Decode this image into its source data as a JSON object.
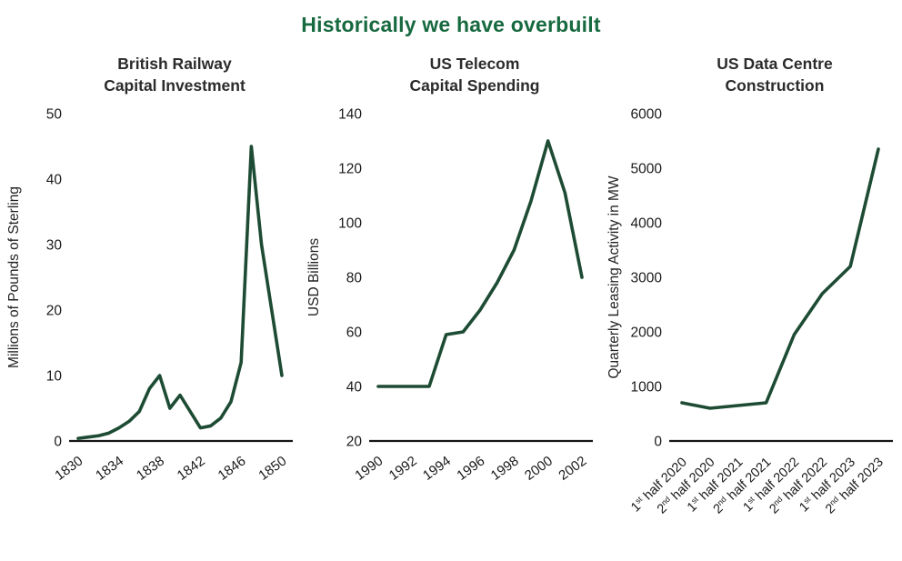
{
  "page_title": "Historically we have overbuilt",
  "colors": {
    "heading": "#17693f",
    "line": "#1d4b33",
    "axis": "#161616",
    "tick_text": "#1a1a1a",
    "background": "#ffffff"
  },
  "chart_data": [
    {
      "type": "line",
      "title": "British Railway Capital Investment",
      "title_lines": [
        "British Railway",
        "Capital Investment"
      ],
      "ylabel": "Millions of Pounds of Sterling",
      "xlabel": "",
      "x": [
        1830,
        1831,
        1832,
        1833,
        1834,
        1835,
        1836,
        1837,
        1838,
        1839,
        1840,
        1841,
        1842,
        1843,
        1844,
        1845,
        1846,
        1847,
        1848,
        1849,
        1850
      ],
      "values": [
        0.4,
        0.6,
        0.8,
        1.2,
        2,
        3,
        4.5,
        8,
        10,
        5,
        7,
        4.5,
        2,
        2.3,
        3.5,
        6,
        12,
        45,
        30,
        20,
        10
      ],
      "xticks": [
        1830,
        1834,
        1838,
        1842,
        1846,
        1850
      ],
      "yticks": [
        0,
        10,
        20,
        30,
        40,
        50
      ],
      "ylim": [
        0,
        50
      ],
      "grid": false,
      "legend": "none"
    },
    {
      "type": "line",
      "title": "US Telecom Capital Spending",
      "title_lines": [
        "US Telecom",
        "Capital Spending"
      ],
      "ylabel": "USD Billions",
      "xlabel": "",
      "x": [
        1990,
        1991,
        1992,
        1993,
        1994,
        1995,
        1996,
        1997,
        1998,
        1999,
        2000,
        2001,
        2002
      ],
      "values": [
        40,
        40,
        40,
        40,
        59,
        60,
        68,
        78,
        90,
        108,
        130,
        111,
        80
      ],
      "xticks": [
        1990,
        1992,
        1994,
        1996,
        1998,
        2000,
        2002
      ],
      "yticks": [
        20,
        40,
        60,
        80,
        100,
        120,
        140
      ],
      "ylim": [
        20,
        140
      ],
      "grid": false,
      "legend": "none"
    },
    {
      "type": "line",
      "title": "US Data Centre Construction",
      "title_lines": [
        "US Data Centre",
        "Construction"
      ],
      "ylabel": "Quarterly Leasing Activity in MW",
      "xlabel": "",
      "categories": [
        "1st half 2020",
        "2nd half 2020",
        "1st half 2021",
        "2nd half 2021",
        "1st half 2022",
        "2nd half 2022",
        "1st half 2023",
        "2nd half 2023"
      ],
      "values": [
        700,
        600,
        650,
        700,
        1950,
        2700,
        3200,
        5350
      ],
      "yticks": [
        0,
        1000,
        2000,
        3000,
        4000,
        5000,
        6000
      ],
      "ylim": [
        0,
        6000
      ],
      "grid": false,
      "legend": "none"
    }
  ]
}
